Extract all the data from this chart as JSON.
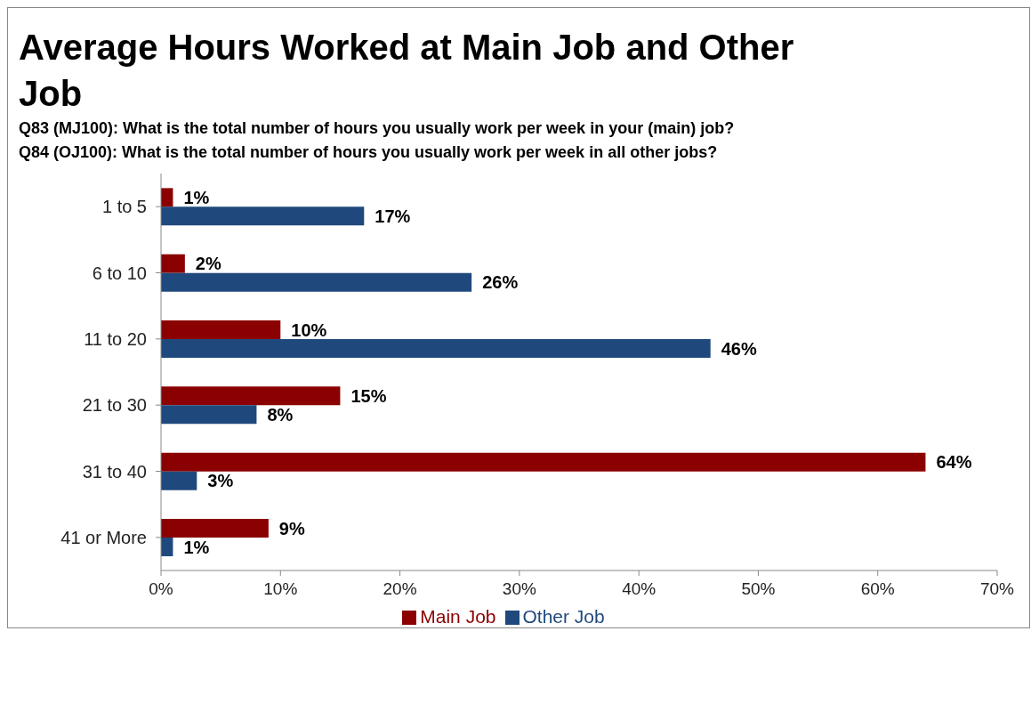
{
  "chart_data": {
    "type": "bar",
    "orientation": "horizontal",
    "title": "Average Hours Worked at Main Job and Other Job",
    "subtitle": "Q83 (MJ100): What is the total number of hours you usually work per week in your (main) job?\nQ84 (OJ100): What is the total number of hours you usually work per week in all other jobs?",
    "categories": [
      "1 to 5",
      "6 to 10",
      "11 to 20",
      "21 to 30",
      "31 to 40",
      "41 or More"
    ],
    "series": [
      {
        "name": "Main Job",
        "color": "#8b0000",
        "values": [
          1,
          2,
          10,
          15,
          64,
          9
        ],
        "value_labels": [
          "1%",
          "2%",
          "10%",
          "15%",
          "64%",
          "9%"
        ]
      },
      {
        "name": "Other Job",
        "color": "#1f497d",
        "values": [
          17,
          26,
          46,
          8,
          3,
          1
        ],
        "value_labels": [
          "17%",
          "26%",
          "46%",
          "8%",
          "3%",
          "1%"
        ]
      }
    ],
    "xlim": [
      0,
      70
    ],
    "xticks": [
      {
        "value": 0,
        "label": "0%"
      },
      {
        "value": 10,
        "label": "10%"
      },
      {
        "value": 20,
        "label": "20%"
      },
      {
        "value": 30,
        "label": "30%"
      },
      {
        "value": 40,
        "label": "40%"
      },
      {
        "value": 50,
        "label": "50%"
      },
      {
        "value": 60,
        "label": "60%"
      },
      {
        "value": 70,
        "label": "70%"
      }
    ],
    "grid": false,
    "legend": "bottom"
  }
}
